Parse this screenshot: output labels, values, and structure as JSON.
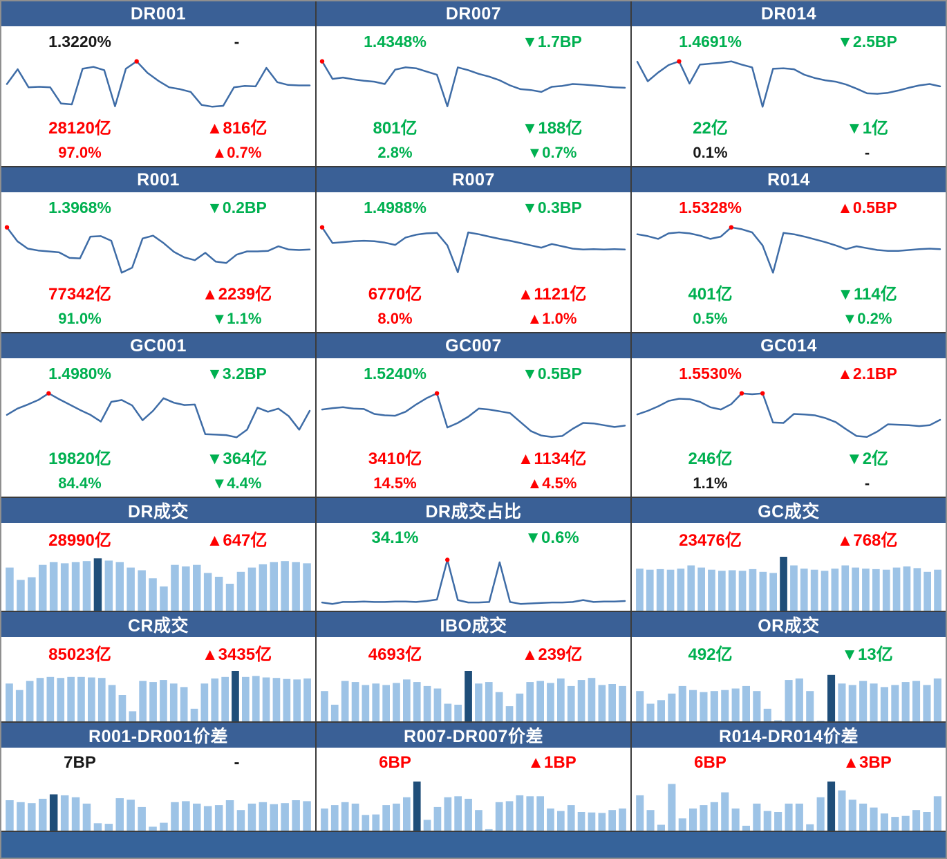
{
  "colors": {
    "red": "#FF0000",
    "green": "#00B050",
    "black": "#1A1A1A",
    "header_bg": "#3A6096",
    "footer_bg": "#36639A",
    "panel_bg": "#FFFFFF",
    "grid_line": "#3B3B3B",
    "outer_frame": "#8F8F8F",
    "line_blue": "#3E6CA6",
    "marker_red": "#FF0000",
    "bar_light": "#9DC3E6",
    "bar_dark": "#1F4E79"
  },
  "rate_panels": [
    {
      "title": "DR001",
      "rate": "1.3220%",
      "rate_color": "black",
      "rate_change": "-",
      "rate_change_color": "black",
      "volume": "28120亿",
      "volume_color": "red",
      "volume_change": "▲816亿",
      "volume_change_color": "red",
      "share": "97.0%",
      "share_color": "red",
      "share_change": "▲0.7%",
      "share_change_color": "red"
    },
    {
      "title": "DR007",
      "rate": "1.4348%",
      "rate_color": "green",
      "rate_change": "▼1.7BP",
      "rate_change_color": "green",
      "volume": "801亿",
      "volume_color": "green",
      "volume_change": "▼188亿",
      "volume_change_color": "green",
      "share": "2.8%",
      "share_color": "green",
      "share_change": "▼0.7%",
      "share_change_color": "green"
    },
    {
      "title": "DR014",
      "rate": "1.4691%",
      "rate_color": "green",
      "rate_change": "▼2.5BP",
      "rate_change_color": "green",
      "volume": "22亿",
      "volume_color": "green",
      "volume_change": "▼1亿",
      "volume_change_color": "green",
      "share": "0.1%",
      "share_color": "black",
      "share_change": "-",
      "share_change_color": "black"
    },
    {
      "title": "R001",
      "rate": "1.3968%",
      "rate_color": "green",
      "rate_change": "▼0.2BP",
      "rate_change_color": "green",
      "volume": "77342亿",
      "volume_color": "red",
      "volume_change": "▲2239亿",
      "volume_change_color": "red",
      "share": "91.0%",
      "share_color": "green",
      "share_change": "▼1.1%",
      "share_change_color": "green"
    },
    {
      "title": "R007",
      "rate": "1.4988%",
      "rate_color": "green",
      "rate_change": "▼0.3BP",
      "rate_change_color": "green",
      "volume": "6770亿",
      "volume_color": "red",
      "volume_change": "▲1121亿",
      "volume_change_color": "red",
      "share": "8.0%",
      "share_color": "red",
      "share_change": "▲1.0%",
      "share_change_color": "red"
    },
    {
      "title": "R014",
      "rate": "1.5328%",
      "rate_color": "red",
      "rate_change": "▲0.5BP",
      "rate_change_color": "red",
      "volume": "401亿",
      "volume_color": "green",
      "volume_change": "▼114亿",
      "volume_change_color": "green",
      "share": "0.5%",
      "share_color": "green",
      "share_change": "▼0.2%",
      "share_change_color": "green"
    },
    {
      "title": "GC001",
      "rate": "1.4980%",
      "rate_color": "green",
      "rate_change": "▼3.2BP",
      "rate_change_color": "green",
      "volume": "19820亿",
      "volume_color": "green",
      "volume_change": "▼364亿",
      "volume_change_color": "green",
      "share": "84.4%",
      "share_color": "green",
      "share_change": "▼4.4%",
      "share_change_color": "green"
    },
    {
      "title": "GC007",
      "rate": "1.5240%",
      "rate_color": "green",
      "rate_change": "▼0.5BP",
      "rate_change_color": "green",
      "volume": "3410亿",
      "volume_color": "red",
      "volume_change": "▲1134亿",
      "volume_change_color": "red",
      "share": "14.5%",
      "share_color": "red",
      "share_change": "▲4.5%",
      "share_change_color": "red"
    },
    {
      "title": "GC014",
      "rate": "1.5530%",
      "rate_color": "red",
      "rate_change": "▲2.1BP",
      "rate_change_color": "red",
      "volume": "246亿",
      "volume_color": "green",
      "volume_change": "▼2亿",
      "volume_change_color": "green",
      "share": "1.1%",
      "share_color": "black",
      "share_change": "-",
      "share_change_color": "black"
    }
  ],
  "volume_panels": [
    {
      "title": "DR成交",
      "value": "28990亿",
      "value_color": "red",
      "change": "▲647亿",
      "change_color": "red"
    },
    {
      "title": "DR成交占比",
      "value": "34.1%",
      "value_color": "green",
      "change": "▼0.6%",
      "change_color": "green"
    },
    {
      "title": "GC成交",
      "value": "23476亿",
      "value_color": "red",
      "change": "▲768亿",
      "change_color": "red"
    },
    {
      "title": "CR成交",
      "value": "85023亿",
      "value_color": "red",
      "change": "▲3435亿",
      "change_color": "red"
    },
    {
      "title": "IBO成交",
      "value": "4693亿",
      "value_color": "red",
      "change": "▲239亿",
      "change_color": "red"
    },
    {
      "title": "OR成交",
      "value": "492亿",
      "value_color": "green",
      "change": "▼13亿",
      "change_color": "green"
    }
  ],
  "spread_panels": [
    {
      "title": "R001-DR001价差",
      "value": "7BP",
      "value_color": "black",
      "change": "-",
      "change_color": "black"
    },
    {
      "title": "R007-DR007价差",
      "value": "6BP",
      "value_color": "red",
      "change": "▲1BP",
      "change_color": "red"
    },
    {
      "title": "R014-DR014价差",
      "value": "6BP",
      "value_color": "red",
      "change": "▲3BP",
      "change_color": "red"
    }
  ],
  "chart_data": [
    {
      "panel": "DR001",
      "type": "line",
      "scale": "normalized 0-1",
      "values": [
        0.5,
        0.82,
        0.43,
        0.44,
        0.43,
        0.08,
        0.06,
        0.83,
        0.87,
        0.8,
        0.02,
        0.83,
        0.99,
        0.74,
        0.57,
        0.43,
        0.39,
        0.33,
        0.05,
        0.01,
        0.03,
        0.43,
        0.46,
        0.45,
        0.85,
        0.54,
        0.48,
        0.47,
        0.47
      ],
      "marker_indices": [
        12
      ]
    },
    {
      "panel": "DR007",
      "type": "line",
      "scale": "normalized 0-1",
      "values": [
        0.99,
        0.61,
        0.64,
        0.6,
        0.57,
        0.55,
        0.5,
        0.81,
        0.86,
        0.84,
        0.77,
        0.7,
        0.02,
        0.86,
        0.8,
        0.72,
        0.66,
        0.58,
        0.47,
        0.39,
        0.37,
        0.33,
        0.44,
        0.46,
        0.5,
        0.49,
        0.47,
        0.45,
        0.43,
        0.42
      ],
      "marker_indices": [
        0
      ]
    },
    {
      "panel": "DR014",
      "type": "line",
      "scale": "normalized 0-1",
      "values": [
        0.98,
        0.56,
        0.75,
        0.91,
        0.99,
        0.51,
        0.92,
        0.94,
        0.96,
        0.99,
        0.92,
        0.86,
        0.01,
        0.83,
        0.84,
        0.82,
        0.7,
        0.63,
        0.58,
        0.55,
        0.49,
        0.4,
        0.3,
        0.29,
        0.31,
        0.36,
        0.42,
        0.47,
        0.5,
        0.45
      ],
      "marker_indices": [
        4
      ]
    },
    {
      "panel": "R001",
      "type": "line",
      "scale": "normalized 0-1",
      "values": [
        0.99,
        0.69,
        0.53,
        0.49,
        0.47,
        0.45,
        0.33,
        0.32,
        0.79,
        0.8,
        0.7,
        0.01,
        0.12,
        0.75,
        0.81,
        0.65,
        0.46,
        0.34,
        0.28,
        0.44,
        0.25,
        0.22,
        0.4,
        0.47,
        0.47,
        0.48,
        0.58,
        0.51,
        0.5,
        0.51
      ],
      "marker_indices": [
        0
      ]
    },
    {
      "panel": "R007",
      "type": "line",
      "scale": "normalized 0-1",
      "values": [
        0.99,
        0.65,
        0.67,
        0.69,
        0.7,
        0.69,
        0.66,
        0.61,
        0.77,
        0.83,
        0.86,
        0.87,
        0.6,
        0.02,
        0.88,
        0.84,
        0.79,
        0.74,
        0.7,
        0.65,
        0.6,
        0.55,
        0.63,
        0.58,
        0.53,
        0.51,
        0.52,
        0.51,
        0.52,
        0.51
      ],
      "marker_indices": [
        0
      ]
    },
    {
      "panel": "R014",
      "type": "line",
      "scale": "normalized 0-1",
      "values": [
        0.84,
        0.8,
        0.74,
        0.86,
        0.88,
        0.86,
        0.81,
        0.74,
        0.79,
        0.99,
        0.95,
        0.88,
        0.6,
        0.01,
        0.87,
        0.84,
        0.79,
        0.73,
        0.67,
        0.6,
        0.52,
        0.58,
        0.54,
        0.5,
        0.48,
        0.48,
        0.5,
        0.52,
        0.53,
        0.52
      ],
      "marker_indices": [
        9
      ]
    },
    {
      "panel": "GC001",
      "type": "line",
      "scale": "normalized 0-1",
      "values": [
        0.51,
        0.65,
        0.74,
        0.84,
        0.99,
        0.86,
        0.74,
        0.62,
        0.51,
        0.36,
        0.8,
        0.84,
        0.72,
        0.39,
        0.6,
        0.88,
        0.78,
        0.73,
        0.74,
        0.08,
        0.07,
        0.06,
        0.01,
        0.18,
        0.67,
        0.58,
        0.65,
        0.48,
        0.18,
        0.6
      ],
      "marker_indices": [
        4
      ]
    },
    {
      "panel": "GC007",
      "type": "line",
      "scale": "normalized 0-1",
      "values": [
        0.63,
        0.66,
        0.68,
        0.65,
        0.64,
        0.53,
        0.5,
        0.49,
        0.58,
        0.74,
        0.88,
        0.99,
        0.23,
        0.33,
        0.47,
        0.65,
        0.63,
        0.59,
        0.55,
        0.35,
        0.15,
        0.05,
        0.02,
        0.04,
        0.2,
        0.33,
        0.32,
        0.28,
        0.24,
        0.27
      ],
      "marker_indices": [
        11
      ]
    },
    {
      "panel": "GC014",
      "type": "line",
      "scale": "normalized 0-1",
      "values": [
        0.52,
        0.6,
        0.7,
        0.82,
        0.87,
        0.86,
        0.8,
        0.68,
        0.63,
        0.75,
        0.99,
        0.97,
        0.99,
        0.34,
        0.33,
        0.53,
        0.52,
        0.5,
        0.44,
        0.35,
        0.19,
        0.04,
        0.02,
        0.14,
        0.3,
        0.29,
        0.28,
        0.26,
        0.28,
        0.4
      ],
      "marker_indices": [
        10,
        12
      ]
    },
    {
      "panel": "DR成交",
      "type": "bar",
      "scale": "normalized 0-1",
      "values": [
        0.8,
        0.57,
        0.62,
        0.85,
        0.9,
        0.88,
        0.9,
        0.92,
        0.97,
        0.93,
        0.9,
        0.8,
        0.75,
        0.6,
        0.45,
        0.85,
        0.82,
        0.85,
        0.7,
        0.63,
        0.5,
        0.72,
        0.8,
        0.86,
        0.9,
        0.92,
        0.9,
        0.88
      ],
      "highlight_index": 8
    },
    {
      "panel": "DR成交占比",
      "type": "line",
      "scale": "normalized 0-1",
      "values": [
        0.07,
        0.04,
        0.08,
        0.08,
        0.09,
        0.08,
        0.08,
        0.09,
        0.09,
        0.08,
        0.1,
        0.13,
        0.95,
        0.12,
        0.07,
        0.07,
        0.08,
        0.9,
        0.08,
        0.04,
        0.05,
        0.06,
        0.07,
        0.07,
        0.08,
        0.12,
        0.08,
        0.09,
        0.09,
        0.1
      ],
      "marker_indices": [
        12
      ]
    },
    {
      "panel": "GC成交",
      "type": "bar",
      "scale": "normalized 0-1",
      "values": [
        0.78,
        0.76,
        0.77,
        0.76,
        0.78,
        0.84,
        0.8,
        0.76,
        0.74,
        0.75,
        0.74,
        0.77,
        0.72,
        0.7,
        1.0,
        0.84,
        0.78,
        0.76,
        0.74,
        0.78,
        0.84,
        0.8,
        0.78,
        0.77,
        0.76,
        0.8,
        0.82,
        0.79,
        0.72,
        0.76
      ],
      "highlight_index": 14
    },
    {
      "panel": "CR成交",
      "type": "bar",
      "scale": "normalized 0-1",
      "values": [
        0.75,
        0.62,
        0.8,
        0.86,
        0.88,
        0.86,
        0.88,
        0.88,
        0.87,
        0.86,
        0.72,
        0.52,
        0.2,
        0.8,
        0.78,
        0.82,
        0.75,
        0.68,
        0.25,
        0.75,
        0.85,
        0.88,
        1.0,
        0.88,
        0.9,
        0.87,
        0.86,
        0.84,
        0.83,
        0.85
      ],
      "highlight_index": 22
    },
    {
      "panel": "IBO成交",
      "type": "bar",
      "scale": "normalized 0-1",
      "values": [
        0.6,
        0.33,
        0.8,
        0.78,
        0.72,
        0.75,
        0.72,
        0.76,
        0.83,
        0.78,
        0.7,
        0.65,
        0.35,
        0.33,
        1.0,
        0.75,
        0.78,
        0.58,
        0.3,
        0.55,
        0.78,
        0.8,
        0.76,
        0.85,
        0.7,
        0.82,
        0.86,
        0.72,
        0.74,
        0.7
      ],
      "highlight_index": 14
    },
    {
      "panel": "OR成交",
      "type": "bar",
      "scale": "normalized 0-1",
      "values": [
        0.6,
        0.35,
        0.42,
        0.55,
        0.7,
        0.62,
        0.58,
        0.6,
        0.62,
        0.65,
        0.7,
        0.6,
        0.25,
        0.02,
        0.82,
        0.85,
        0.6,
        0.0,
        0.92,
        0.75,
        0.72,
        0.8,
        0.75,
        0.68,
        0.72,
        0.78,
        0.8,
        0.72,
        0.85
      ],
      "highlight_index": 18
    },
    {
      "panel": "R001-DR001价差",
      "type": "bar",
      "scale": "normalized 0-1",
      "values": [
        0.62,
        0.58,
        0.56,
        0.65,
        0.74,
        0.72,
        0.68,
        0.55,
        0.15,
        0.14,
        0.66,
        0.63,
        0.48,
        0.08,
        0.16,
        0.58,
        0.6,
        0.55,
        0.5,
        0.52,
        0.62,
        0.42,
        0.55,
        0.58,
        0.54,
        0.56,
        0.62,
        0.6
      ],
      "highlight_index": 4
    },
    {
      "panel": "R007-DR007价差",
      "type": "bar",
      "scale": "normalized 0-1",
      "values": [
        0.45,
        0.52,
        0.58,
        0.55,
        0.32,
        0.33,
        0.52,
        0.55,
        0.68,
        1.0,
        0.22,
        0.48,
        0.68,
        0.7,
        0.65,
        0.42,
        0.03,
        0.58,
        0.6,
        0.72,
        0.7,
        0.7,
        0.45,
        0.4,
        0.52,
        0.38,
        0.37,
        0.36,
        0.42,
        0.45
      ],
      "highlight_index": 9
    },
    {
      "panel": "R014-DR014价差",
      "type": "bar",
      "scale": "normalized 0-1",
      "values": [
        0.72,
        0.42,
        0.12,
        0.95,
        0.25,
        0.45,
        0.52,
        0.58,
        0.78,
        0.45,
        0.1,
        0.55,
        0.4,
        0.38,
        0.55,
        0.55,
        0.13,
        0.68,
        1.0,
        0.82,
        0.63,
        0.55,
        0.47,
        0.35,
        0.28,
        0.3,
        0.42,
        0.38,
        0.7
      ],
      "highlight_index": 18
    }
  ]
}
